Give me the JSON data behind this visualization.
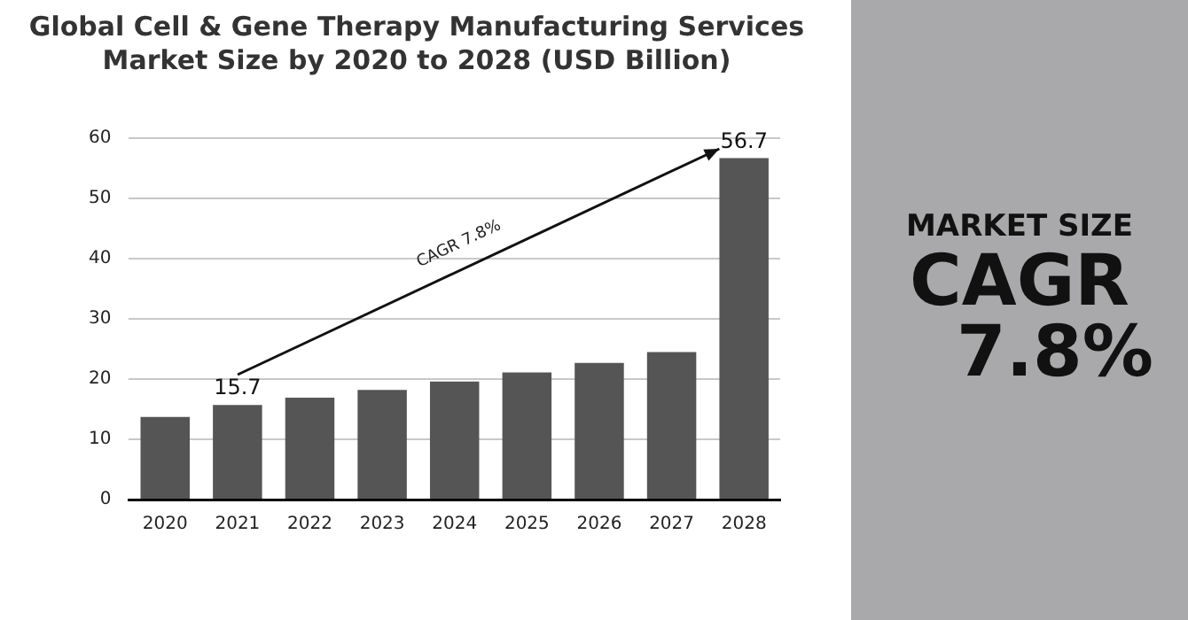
{
  "chart_data": {
    "type": "bar",
    "title": "Global Cell & Gene Therapy Manufacturing Services Market Size by 2020 to 2028 (USD Billion)",
    "categories": [
      "2020",
      "2021",
      "2022",
      "2023",
      "2024",
      "2025",
      "2026",
      "2027",
      "2028"
    ],
    "values": [
      13.7,
      15.7,
      16.9,
      18.2,
      19.6,
      21.1,
      22.7,
      24.5,
      56.7
    ],
    "value_labels": [
      null,
      "15.7",
      null,
      null,
      null,
      null,
      null,
      null,
      "56.7"
    ],
    "color": "#555555",
    "ylim": [
      0,
      60
    ],
    "yticks": [
      0,
      10,
      20,
      30,
      40,
      50,
      60
    ],
    "grid": "y",
    "annotations": [
      "CAGR 7.8%",
      "MARKET SIZE",
      "CAGR",
      "7.8%"
    ]
  }
}
